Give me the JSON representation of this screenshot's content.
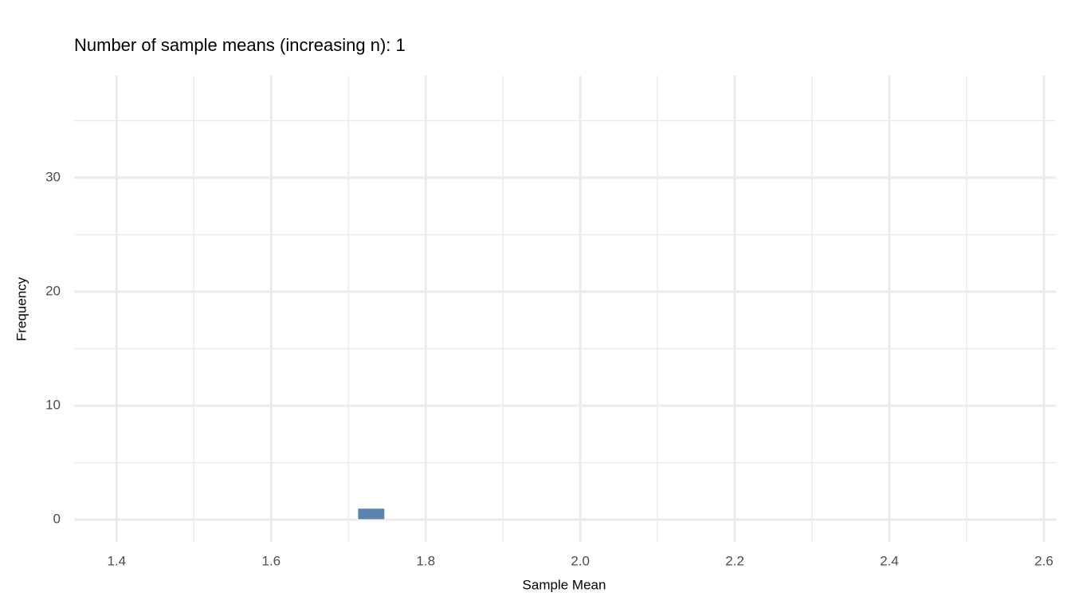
{
  "chart_data": {
    "type": "histogram",
    "title": "Number of sample means (increasing n): 1",
    "xlabel": "Sample Mean",
    "ylabel": "Frequency",
    "bins": [
      1.712,
      1.747
    ],
    "values": [
      1
    ],
    "color": "#5b84b1",
    "xlim": [
      1.345,
      2.6155
    ],
    "ylim": [
      -1.95,
      38.95
    ],
    "xticks": [
      1.4,
      1.6,
      1.8,
      {
        "value": 2,
        "label": "2.0"
      },
      2.2,
      2.4,
      2.6
    ],
    "yticks": [
      0,
      10,
      20,
      30
    ],
    "x_minor_ticks": [
      1.5,
      1.7,
      1.9,
      2.1,
      2.3,
      2.5
    ],
    "y_minor_ticks": [
      5,
      15,
      25,
      35
    ],
    "grid": true
  }
}
